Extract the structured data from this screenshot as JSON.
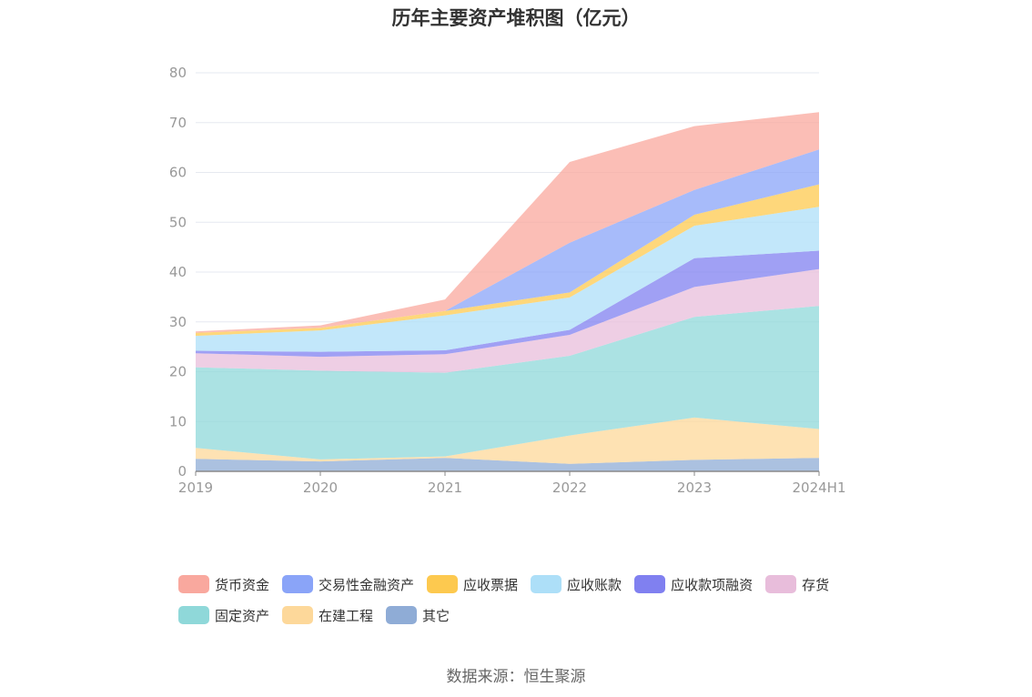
{
  "chart_data": {
    "type": "area",
    "stacked": true,
    "title": "历年主要资产堆积图（亿元）",
    "categories": [
      "2019",
      "2020",
      "2021",
      "2022",
      "2023",
      "2024H1"
    ],
    "ylim": [
      0,
      80
    ],
    "yticks": [
      0,
      10,
      20,
      30,
      40,
      50,
      60,
      70,
      80
    ],
    "grid": true,
    "legend_position": "bottom",
    "series": [
      {
        "name": "其它",
        "color": "#8facd6",
        "values": [
          2.5,
          2.0,
          2.7,
          1.5,
          2.3,
          2.7
        ]
      },
      {
        "name": "在建工程",
        "color": "#fdd89a",
        "values": [
          2.2,
          0.4,
          0.3,
          5.7,
          8.5,
          5.8
        ]
      },
      {
        "name": "固定资产",
        "color": "#8fd8d9",
        "values": [
          16.2,
          17.8,
          16.8,
          16.0,
          20.2,
          24.7
        ]
      },
      {
        "name": "存货",
        "color": "#e8bddb",
        "values": [
          2.8,
          2.8,
          3.7,
          4.2,
          6.0,
          7.4
        ]
      },
      {
        "name": "应收款项融资",
        "color": "#8080f0",
        "values": [
          0.5,
          1.0,
          0.8,
          1.0,
          5.8,
          3.7
        ]
      },
      {
        "name": "应收账款",
        "color": "#addff8",
        "values": [
          3.0,
          4.3,
          7.0,
          6.5,
          6.5,
          8.8
        ]
      },
      {
        "name": "应收票据",
        "color": "#fdc94f",
        "values": [
          0.6,
          0.5,
          0.9,
          1.0,
          2.2,
          4.5
        ]
      },
      {
        "name": "交易性金融资产",
        "color": "#8aa4f8",
        "values": [
          0.0,
          0.0,
          0.0,
          10.0,
          5.0,
          7.0
        ]
      },
      {
        "name": "货币资金",
        "color": "#f9a89e",
        "values": [
          0.3,
          0.5,
          2.3,
          16.2,
          12.8,
          7.5
        ]
      }
    ]
  },
  "legend_order": [
    "货币资金",
    "交易性金融资产",
    "应收票据",
    "应收账款",
    "应收款项融资",
    "存货",
    "固定资产",
    "在建工程",
    "其它"
  ],
  "source": "数据来源：恒生聚源"
}
